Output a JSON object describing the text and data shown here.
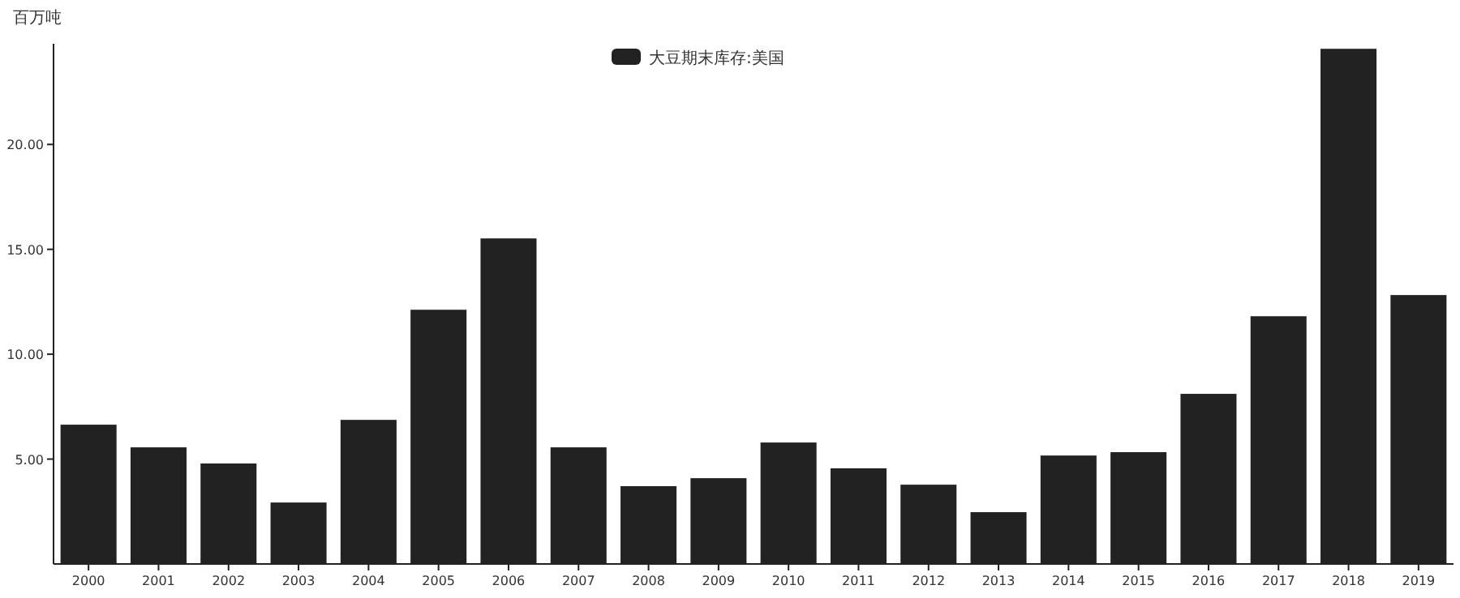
{
  "chart_data": {
    "type": "bar",
    "ylabel": "百万吨",
    "categories": [
      "2000",
      "2001",
      "2002",
      "2003",
      "2004",
      "2005",
      "2006",
      "2007",
      "2008",
      "2009",
      "2010",
      "2011",
      "2012",
      "2013",
      "2014",
      "2015",
      "2016",
      "2017",
      "2018",
      "2019"
    ],
    "series": [
      {
        "name": "大豆期末库存:美国",
        "color": "#222222",
        "values": [
          6.64,
          5.56,
          4.79,
          2.93,
          6.87,
          12.12,
          15.52,
          5.56,
          3.71,
          4.09,
          5.79,
          4.56,
          3.78,
          2.47,
          5.17,
          5.33,
          8.11,
          11.81,
          24.56,
          12.82
        ]
      }
    ],
    "ylim": [
      0,
      24.8
    ],
    "yticks": [
      {
        "value": 5,
        "label": "5.00"
      },
      {
        "value": 10,
        "label": "10.00"
      },
      {
        "value": 15,
        "label": "15.00"
      },
      {
        "value": 20,
        "label": "20.00"
      }
    ],
    "legend": "top",
    "grid": false
  }
}
